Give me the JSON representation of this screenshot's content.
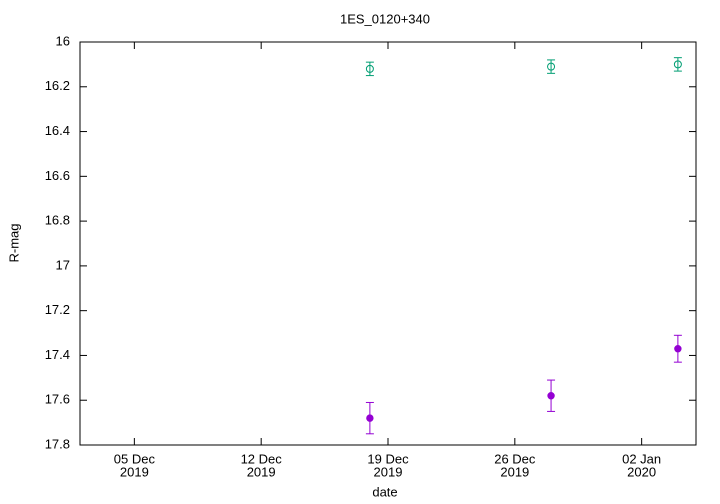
{
  "chart_data": {
    "type": "scatter",
    "title": "1ES_0120+340",
    "xlabel": "date",
    "ylabel": "R-mag",
    "x": [
      "2019-12-18",
      "2019-12-28",
      "2020-01-04"
    ],
    "series": [
      {
        "color": "#009e73",
        "marker": "open-circle",
        "values": [
          16.12,
          16.11,
          16.1
        ],
        "errors": [
          0.03,
          0.03,
          0.03
        ]
      },
      {
        "color": "#9400d3",
        "marker": "filled-circle",
        "values": [
          17.68,
          17.58,
          17.37
        ],
        "errors": [
          0.07,
          0.07,
          0.06
        ]
      }
    ],
    "xlim": [
      "2019-12-02",
      "2020-01-05"
    ],
    "xticks": [
      {
        "value": "2019-12-05",
        "label": [
          "05 Dec",
          "2019"
        ]
      },
      {
        "value": "2019-12-12",
        "label": [
          "12 Dec",
          "2019"
        ]
      },
      {
        "value": "2019-12-19",
        "label": [
          "19 Dec",
          "2019"
        ]
      },
      {
        "value": "2019-12-26",
        "label": [
          "26 Dec",
          "2019"
        ]
      },
      {
        "value": "2020-01-02",
        "label": [
          "02 Jan",
          "2020"
        ]
      }
    ],
    "ylim": [
      16,
      17.8
    ],
    "yinverted": true,
    "yticks": [
      16,
      16.2,
      16.4,
      16.6,
      16.8,
      17,
      17.2,
      17.4,
      17.6,
      17.8
    ],
    "grid": false
  }
}
